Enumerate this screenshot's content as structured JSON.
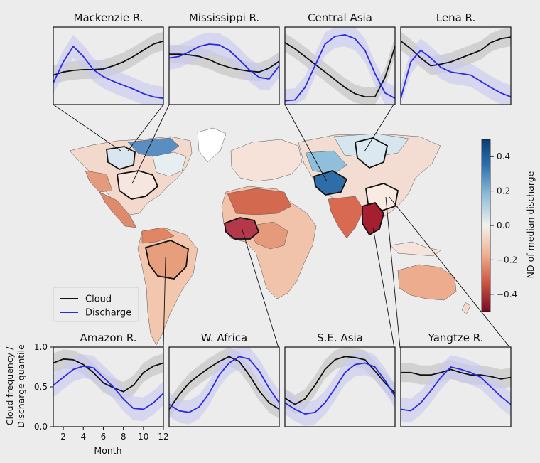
{
  "legend": {
    "cloud_label": "Cloud",
    "discharge_label": "Discharge"
  },
  "colorbar": {
    "label": "ND of median discharge",
    "ticks": [
      "0.4",
      "0.2",
      "0.0",
      "−0.2",
      "−0.4"
    ],
    "range": [
      -0.5,
      0.5
    ],
    "colormap": "RdBu"
  },
  "axes": {
    "ylabel_line1": "Cloud frequency /",
    "ylabel_line2": "Discharge quantile",
    "xlabel": "Month",
    "yticks": [
      "0.0",
      "0.5",
      "1.0"
    ],
    "xticks": [
      "2",
      "4",
      "6",
      "8",
      "10",
      "12"
    ]
  },
  "colors": {
    "cloud": "#111111",
    "discharge": "#2929e0",
    "cloud_band": "#c8c8c8",
    "discharge_band": "#c8c8f0",
    "background": "#ececec"
  },
  "chart_data": [
    {
      "type": "line",
      "title": "Mackenzie R.",
      "x": [
        1,
        2,
        3,
        4,
        5,
        6,
        7,
        8,
        9,
        10,
        11,
        12
      ],
      "series": [
        {
          "name": "Cloud",
          "values": [
            0.38,
            0.42,
            0.44,
            0.45,
            0.45,
            0.46,
            0.5,
            0.55,
            0.62,
            0.7,
            0.78,
            0.82
          ]
        },
        {
          "name": "Discharge",
          "values": [
            0.28,
            0.55,
            0.75,
            0.62,
            0.45,
            0.36,
            0.3,
            0.25,
            0.2,
            0.14,
            0.1,
            0.08
          ]
        }
      ]
    },
    {
      "type": "line",
      "title": "Mississippi R.",
      "x": [
        1,
        2,
        3,
        4,
        5,
        6,
        7,
        8,
        9,
        10,
        11,
        12
      ],
      "series": [
        {
          "name": "Cloud",
          "values": [
            0.65,
            0.65,
            0.64,
            0.62,
            0.58,
            0.52,
            0.48,
            0.45,
            0.43,
            0.42,
            0.47,
            0.56
          ]
        },
        {
          "name": "Discharge",
          "values": [
            0.6,
            0.62,
            0.68,
            0.75,
            0.78,
            0.77,
            0.7,
            0.58,
            0.45,
            0.35,
            0.33,
            0.5
          ]
        }
      ]
    },
    {
      "type": "line",
      "title": "Central Asia",
      "x": [
        1,
        2,
        3,
        4,
        5,
        6,
        7,
        8,
        9,
        10,
        11,
        12
      ],
      "series": [
        {
          "name": "Cloud",
          "values": [
            0.8,
            0.72,
            0.62,
            0.52,
            0.42,
            0.32,
            0.22,
            0.14,
            0.1,
            0.1,
            0.35,
            0.75
          ]
        },
        {
          "name": "Discharge",
          "values": [
            0.05,
            0.06,
            0.22,
            0.5,
            0.78,
            0.88,
            0.9,
            0.85,
            0.7,
            0.4,
            0.15,
            0.08
          ]
        }
      ]
    },
    {
      "type": "line",
      "title": "Lena R.",
      "x": [
        1,
        2,
        3,
        4,
        5,
        6,
        7,
        8,
        9,
        10,
        11,
        12
      ],
      "series": [
        {
          "name": "Cloud",
          "values": [
            0.82,
            0.72,
            0.6,
            0.5,
            0.52,
            0.55,
            0.6,
            0.65,
            0.7,
            0.8,
            0.85,
            0.87
          ]
        },
        {
          "name": "Discharge",
          "values": [
            0.08,
            0.55,
            0.7,
            0.6,
            0.48,
            0.42,
            0.4,
            0.38,
            0.3,
            0.22,
            0.15,
            0.1
          ]
        }
      ]
    },
    {
      "type": "line",
      "title": "Amazon R.",
      "x": [
        1,
        2,
        3,
        4,
        5,
        6,
        7,
        8,
        9,
        10,
        11,
        12
      ],
      "series": [
        {
          "name": "Cloud",
          "values": [
            0.8,
            0.85,
            0.84,
            0.78,
            0.68,
            0.55,
            0.49,
            0.44,
            0.52,
            0.68,
            0.76,
            0.8
          ]
        },
        {
          "name": "Discharge",
          "values": [
            0.52,
            0.62,
            0.72,
            0.76,
            0.74,
            0.62,
            0.5,
            0.35,
            0.23,
            0.22,
            0.3,
            0.42
          ]
        }
      ]
    },
    {
      "type": "line",
      "title": "W. Africa",
      "x": [
        1,
        2,
        3,
        4,
        5,
        6,
        7,
        8,
        9,
        10,
        11,
        12
      ],
      "series": [
        {
          "name": "Cloud",
          "values": [
            0.22,
            0.4,
            0.55,
            0.65,
            0.74,
            0.82,
            0.88,
            0.82,
            0.65,
            0.45,
            0.3,
            0.22
          ]
        },
        {
          "name": "Discharge",
          "values": [
            0.28,
            0.2,
            0.18,
            0.25,
            0.42,
            0.65,
            0.8,
            0.88,
            0.85,
            0.7,
            0.48,
            0.3
          ]
        }
      ]
    },
    {
      "type": "line",
      "title": "S.E. Asia",
      "x": [
        1,
        2,
        3,
        4,
        5,
        6,
        7,
        8,
        9,
        10,
        11,
        12
      ],
      "series": [
        {
          "name": "Cloud",
          "values": [
            0.36,
            0.28,
            0.35,
            0.52,
            0.72,
            0.84,
            0.88,
            0.87,
            0.84,
            0.7,
            0.55,
            0.42
          ]
        },
        {
          "name": "Discharge",
          "values": [
            0.3,
            0.22,
            0.16,
            0.18,
            0.3,
            0.48,
            0.68,
            0.78,
            0.8,
            0.75,
            0.58,
            0.38
          ]
        }
      ]
    },
    {
      "type": "line",
      "title": "Yangtze R.",
      "x": [
        1,
        2,
        3,
        4,
        5,
        6,
        7,
        8,
        9,
        10,
        11,
        12
      ],
      "series": [
        {
          "name": "Cloud",
          "values": [
            0.68,
            0.68,
            0.65,
            0.65,
            0.68,
            0.72,
            0.68,
            0.65,
            0.65,
            0.63,
            0.6,
            0.62
          ]
        },
        {
          "name": "Discharge",
          "values": [
            0.22,
            0.2,
            0.3,
            0.45,
            0.62,
            0.75,
            0.72,
            0.68,
            0.62,
            0.5,
            0.38,
            0.28
          ]
        }
      ]
    }
  ]
}
